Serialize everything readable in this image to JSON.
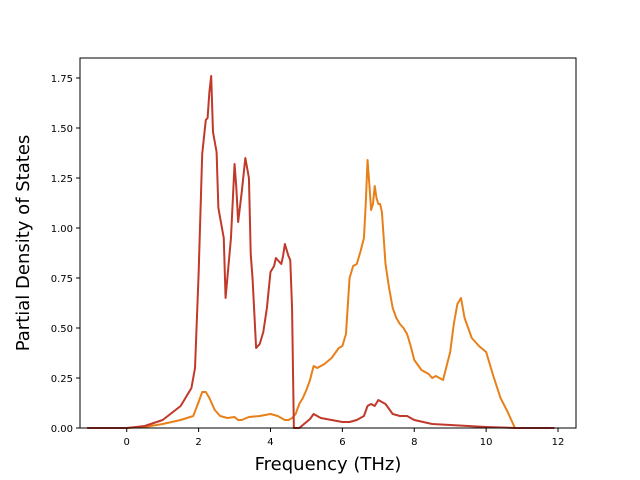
{
  "chart_data": {
    "type": "line",
    "title": "",
    "xlabel": "Frequency (THz)",
    "ylabel": "Partial Density of States",
    "xlim": [
      -1.3,
      12.5
    ],
    "ylim": [
      0.0,
      1.85
    ],
    "xticks": [
      0,
      2,
      4,
      6,
      8,
      10,
      12
    ],
    "xtick_labels": [
      "0",
      "2",
      "4",
      "6",
      "8",
      "10",
      "12"
    ],
    "yticks": [
      0.0,
      0.25,
      0.5,
      0.75,
      1.0,
      1.25,
      1.5,
      1.75
    ],
    "ytick_labels": [
      "0.00",
      "0.25",
      "0.50",
      "0.75",
      "1.00",
      "1.25",
      "1.50",
      "1.75"
    ],
    "grid": false,
    "legend": false,
    "series": [
      {
        "color": "#e8801a",
        "x": [
          -1.1,
          0.0,
          0.5,
          1.0,
          1.5,
          1.85,
          2.0,
          2.1,
          2.2,
          2.3,
          2.45,
          2.6,
          2.8,
          3.0,
          3.1,
          3.2,
          3.4,
          3.7,
          4.0,
          4.2,
          4.4,
          4.5,
          4.6,
          4.7,
          4.8,
          4.9,
          5.0,
          5.1,
          5.2,
          5.3,
          5.5,
          5.7,
          5.9,
          6.0,
          6.1,
          6.2,
          6.3,
          6.4,
          6.5,
          6.6,
          6.65,
          6.7,
          6.75,
          6.8,
          6.85,
          6.9,
          6.95,
          7.0,
          7.05,
          7.1,
          7.2,
          7.3,
          7.4,
          7.5,
          7.6,
          7.7,
          7.8,
          7.9,
          8.0,
          8.2,
          8.4,
          8.5,
          8.6,
          8.8,
          9.0,
          9.1,
          9.2,
          9.3,
          9.4,
          9.6,
          9.8,
          10.0,
          10.2,
          10.4,
          10.6,
          10.7,
          10.8,
          11.0,
          11.9
        ],
        "y": [
          0.0,
          0.0,
          0.005,
          0.02,
          0.04,
          0.06,
          0.13,
          0.18,
          0.18,
          0.15,
          0.09,
          0.06,
          0.05,
          0.055,
          0.04,
          0.04,
          0.055,
          0.06,
          0.07,
          0.06,
          0.04,
          0.04,
          0.05,
          0.07,
          0.12,
          0.15,
          0.19,
          0.24,
          0.31,
          0.3,
          0.32,
          0.35,
          0.4,
          0.41,
          0.47,
          0.75,
          0.81,
          0.82,
          0.88,
          0.95,
          1.12,
          1.34,
          1.22,
          1.09,
          1.12,
          1.21,
          1.15,
          1.12,
          1.12,
          1.08,
          0.82,
          0.7,
          0.6,
          0.55,
          0.52,
          0.5,
          0.47,
          0.41,
          0.34,
          0.29,
          0.27,
          0.25,
          0.26,
          0.24,
          0.38,
          0.52,
          0.62,
          0.65,
          0.55,
          0.45,
          0.41,
          0.38,
          0.26,
          0.15,
          0.08,
          0.04,
          0.0,
          0.0,
          0.0
        ]
      },
      {
        "color": "#c0392b",
        "x": [
          -1.1,
          0.0,
          0.5,
          1.0,
          1.5,
          1.8,
          1.9,
          2.0,
          2.1,
          2.2,
          2.25,
          2.3,
          2.35,
          2.4,
          2.5,
          2.55,
          2.6,
          2.7,
          2.75,
          2.8,
          2.9,
          3.0,
          3.05,
          3.1,
          3.2,
          3.3,
          3.4,
          3.45,
          3.5,
          3.6,
          3.7,
          3.8,
          3.9,
          4.0,
          4.1,
          4.15,
          4.2,
          4.3,
          4.35,
          4.4,
          4.5,
          4.55,
          4.6,
          4.65,
          4.8,
          5.0,
          5.1,
          5.2,
          5.4,
          5.7,
          6.0,
          6.2,
          6.4,
          6.6,
          6.7,
          6.8,
          6.9,
          7.0,
          7.1,
          7.2,
          7.4,
          7.6,
          7.8,
          8.0,
          8.5,
          9.0,
          10.0,
          10.8,
          11.9
        ],
        "y": [
          0.0,
          0.0,
          0.01,
          0.04,
          0.11,
          0.2,
          0.3,
          0.77,
          1.37,
          1.54,
          1.55,
          1.68,
          1.76,
          1.48,
          1.38,
          1.1,
          1.05,
          0.95,
          0.65,
          0.75,
          0.95,
          1.32,
          1.2,
          1.03,
          1.18,
          1.35,
          1.25,
          0.87,
          0.75,
          0.4,
          0.42,
          0.48,
          0.6,
          0.78,
          0.81,
          0.85,
          0.84,
          0.82,
          0.86,
          0.92,
          0.86,
          0.84,
          0.6,
          0.0,
          0.0,
          0.03,
          0.045,
          0.07,
          0.05,
          0.04,
          0.03,
          0.03,
          0.04,
          0.06,
          0.11,
          0.12,
          0.11,
          0.14,
          0.13,
          0.12,
          0.07,
          0.06,
          0.06,
          0.04,
          0.02,
          0.015,
          0.005,
          0.0,
          0.0
        ]
      }
    ]
  }
}
